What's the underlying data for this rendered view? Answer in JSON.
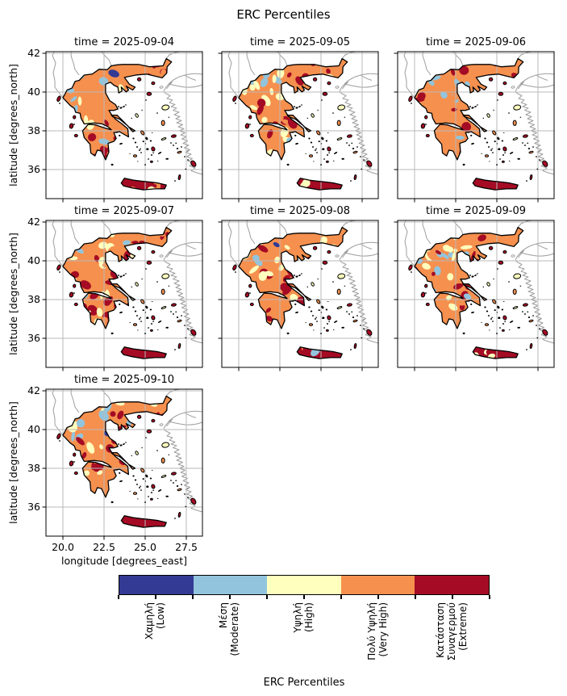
{
  "figure": {
    "title": "ERC Percentiles"
  },
  "panels": [
    {
      "title": "time = 2025-09-04",
      "date": "2025-09-04"
    },
    {
      "title": "time = 2025-09-05",
      "date": "2025-09-05"
    },
    {
      "title": "time = 2025-09-06",
      "date": "2025-09-06"
    },
    {
      "title": "time = 2025-09-07",
      "date": "2025-09-07"
    },
    {
      "title": "time = 2025-09-08",
      "date": "2025-09-08"
    },
    {
      "title": "time = 2025-09-09",
      "date": "2025-09-09"
    },
    {
      "title": "time = 2025-09-10",
      "date": "2025-09-10"
    }
  ],
  "axes": {
    "ylabel": "latitude [degrees_north]",
    "xlabel": "longitude [degrees_east]",
    "yticks": [
      "42",
      "40",
      "38",
      "36"
    ],
    "xticks": [
      "20.0",
      "22.5",
      "25.0",
      "27.5"
    ]
  },
  "colorbar": {
    "label": "ERC Percentiles",
    "categories": [
      {
        "label": "Χαμηλή\n(Low)",
        "color": "#323a93"
      },
      {
        "label": "Μέση\n(Moderate)",
        "color": "#92c5dd"
      },
      {
        "label": "Υψηλή\n(High)",
        "color": "#ffffbe"
      },
      {
        "label": "Πολύ Υψηλή\n(Very High)",
        "color": "#f6904e"
      },
      {
        "label": "Κατάσταση\nΣυναγερμού\n(Extreme)",
        "color": "#a50b24"
      }
    ]
  },
  "chart_data": {
    "type": "heatmap",
    "title": "ERC Percentiles",
    "region": "Greece",
    "facet_variable": "time",
    "facets": [
      "2025-09-04",
      "2025-09-05",
      "2025-09-06",
      "2025-09-07",
      "2025-09-08",
      "2025-09-09",
      "2025-09-10"
    ],
    "xlabel": "longitude [degrees_east]",
    "ylabel": "latitude [degrees_north]",
    "xticks": [
      20.0,
      22.5,
      25.0,
      27.5
    ],
    "yticks": [
      36,
      38,
      40,
      42
    ],
    "xlim": [
      18.97,
      28.45
    ],
    "ylim": [
      34.5,
      42.08
    ],
    "grid": true,
    "legend_position": "bottom-horizontal-colorbar",
    "categories": [
      "Χαμηλή (Low)",
      "Μέση (Moderate)",
      "Υψηλή (High)",
      "Πολύ Υψηλή (Very High)",
      "Κατάσταση Συναγερμού (Extreme)"
    ],
    "colors": [
      "#323a93",
      "#92c5dd",
      "#ffffbe",
      "#f6904e",
      "#a50b24"
    ],
    "approx_category_share_by_facet": {
      "2025-09-04": [
        0.01,
        0.13,
        0.22,
        0.32,
        0.32
      ],
      "2025-09-05": [
        0.01,
        0.1,
        0.25,
        0.33,
        0.31
      ],
      "2025-09-06": [
        0.01,
        0.1,
        0.22,
        0.33,
        0.34
      ],
      "2025-09-07": [
        0.02,
        0.16,
        0.24,
        0.28,
        0.3
      ],
      "2025-09-08": [
        0.02,
        0.14,
        0.23,
        0.31,
        0.3
      ],
      "2025-09-09": [
        0.02,
        0.16,
        0.22,
        0.31,
        0.29
      ],
      "2025-09-10": [
        0.06,
        0.21,
        0.26,
        0.25,
        0.22
      ]
    }
  }
}
